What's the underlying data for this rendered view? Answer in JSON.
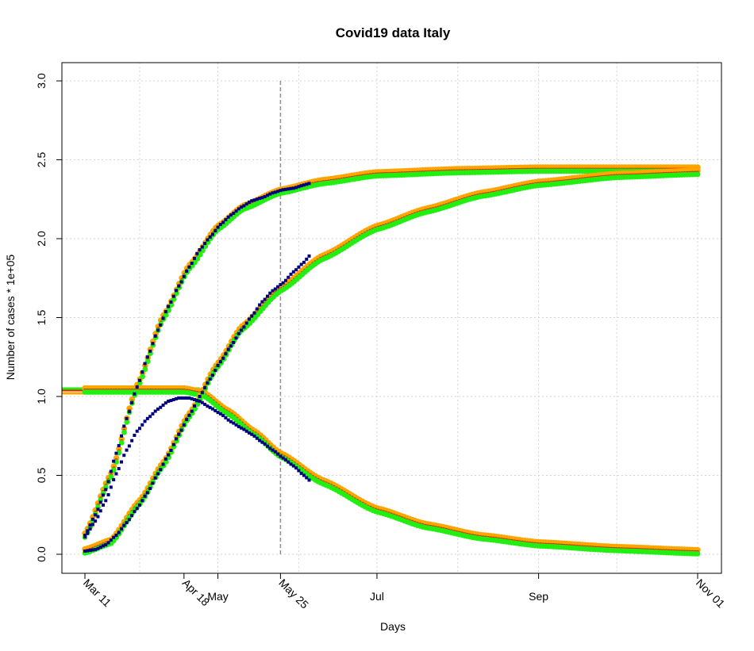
{
  "chart_data": {
    "type": "scatter",
    "title": "Covid19 data Italy",
    "xlabel": "Days",
    "ylabel": "Number of cases * 1e+05",
    "x_range": [
      "2020-03-11",
      "2020-11-01"
    ],
    "ylim": [
      0,
      3
    ],
    "y_ticks": [
      0,
      0.5,
      1,
      1.5,
      2,
      2.5,
      3
    ],
    "y_tick_labels": [
      "0.0",
      "0.5",
      "1.0",
      "1.5",
      "2.0",
      "2.5",
      "3.0"
    ],
    "x_ticks": [
      {
        "date": "2020-03-11",
        "label": "Mar 11",
        "rotated": true
      },
      {
        "date": "2020-04-18",
        "label": "Apr 18",
        "rotated": true
      },
      {
        "date": "2020-05-01",
        "label": "May",
        "rotated": false
      },
      {
        "date": "2020-05-25",
        "label": "May 25",
        "rotated": true
      },
      {
        "date": "2020-07-01",
        "label": "Jul",
        "rotated": false
      },
      {
        "date": "2020-09-01",
        "label": "Sep",
        "rotated": false
      },
      {
        "date": "2020-11-01",
        "label": "Nov 01",
        "rotated": true
      }
    ],
    "grid": true,
    "vertical_line": {
      "date": "2020-05-25",
      "ymax": 3
    },
    "colors": {
      "observed": "#000080",
      "fit_orange": "#ffa500",
      "fit_red": "#dd2200",
      "fit_green": "#22ee11"
    },
    "observed": {
      "cumulative": [
        {
          "x": "2020-03-11",
          "y": 0.12
        },
        {
          "x": "2020-03-15",
          "y": 0.25
        },
        {
          "x": "2020-03-19",
          "y": 0.41
        },
        {
          "x": "2020-03-23",
          "y": 0.64
        },
        {
          "x": "2020-03-27",
          "y": 0.86
        },
        {
          "x": "2020-03-31",
          "y": 1.06
        },
        {
          "x": "2020-04-04",
          "y": 1.25
        },
        {
          "x": "2020-04-08",
          "y": 1.42
        },
        {
          "x": "2020-04-12",
          "y": 1.57
        },
        {
          "x": "2020-04-16",
          "y": 1.7
        },
        {
          "x": "2020-04-20",
          "y": 1.82
        },
        {
          "x": "2020-04-24",
          "y": 1.93
        },
        {
          "x": "2020-04-28",
          "y": 2.01
        },
        {
          "x": "2020-05-02",
          "y": 2.09
        },
        {
          "x": "2020-05-06",
          "y": 2.15
        },
        {
          "x": "2020-05-10",
          "y": 2.2
        },
        {
          "x": "2020-05-14",
          "y": 2.24
        },
        {
          "x": "2020-05-18",
          "y": 2.26
        },
        {
          "x": "2020-05-22",
          "y": 2.29
        },
        {
          "x": "2020-05-26",
          "y": 2.31
        },
        {
          "x": "2020-05-30",
          "y": 2.32
        },
        {
          "x": "2020-06-03",
          "y": 2.34
        },
        {
          "x": "2020-06-05",
          "y": 2.35
        }
      ],
      "active": [
        {
          "x": "2020-03-11",
          "y": 0.11
        },
        {
          "x": "2020-03-15",
          "y": 0.21
        },
        {
          "x": "2020-03-19",
          "y": 0.34
        },
        {
          "x": "2020-03-23",
          "y": 0.51
        },
        {
          "x": "2020-03-27",
          "y": 0.66
        },
        {
          "x": "2020-03-31",
          "y": 0.78
        },
        {
          "x": "2020-04-04",
          "y": 0.86
        },
        {
          "x": "2020-04-08",
          "y": 0.92
        },
        {
          "x": "2020-04-12",
          "y": 0.97
        },
        {
          "x": "2020-04-16",
          "y": 0.99
        },
        {
          "x": "2020-04-20",
          "y": 0.99
        },
        {
          "x": "2020-04-24",
          "y": 0.97
        },
        {
          "x": "2020-04-28",
          "y": 0.93
        },
        {
          "x": "2020-05-02",
          "y": 0.89
        },
        {
          "x": "2020-05-06",
          "y": 0.84
        },
        {
          "x": "2020-05-10",
          "y": 0.8
        },
        {
          "x": "2020-05-14",
          "y": 0.76
        },
        {
          "x": "2020-05-18",
          "y": 0.71
        },
        {
          "x": "2020-05-22",
          "y": 0.66
        },
        {
          "x": "2020-05-26",
          "y": 0.61
        },
        {
          "x": "2020-05-30",
          "y": 0.56
        },
        {
          "x": "2020-06-03",
          "y": 0.5
        },
        {
          "x": "2020-06-05",
          "y": 0.47
        }
      ],
      "closed": [
        {
          "x": "2020-03-11",
          "y": 0.02
        },
        {
          "x": "2020-03-15",
          "y": 0.03
        },
        {
          "x": "2020-03-19",
          "y": 0.06
        },
        {
          "x": "2020-03-23",
          "y": 0.12
        },
        {
          "x": "2020-03-27",
          "y": 0.2
        },
        {
          "x": "2020-03-31",
          "y": 0.29
        },
        {
          "x": "2020-04-04",
          "y": 0.39
        },
        {
          "x": "2020-04-08",
          "y": 0.51
        },
        {
          "x": "2020-04-12",
          "y": 0.63
        },
        {
          "x": "2020-04-16",
          "y": 0.76
        },
        {
          "x": "2020-04-20",
          "y": 0.88
        },
        {
          "x": "2020-04-24",
          "y": 1.0
        },
        {
          "x": "2020-04-28",
          "y": 1.11
        },
        {
          "x": "2020-05-02",
          "y": 1.22
        },
        {
          "x": "2020-05-06",
          "y": 1.32
        },
        {
          "x": "2020-05-10",
          "y": 1.42
        },
        {
          "x": "2020-05-14",
          "y": 1.51
        },
        {
          "x": "2020-05-18",
          "y": 1.6
        },
        {
          "x": "2020-05-22",
          "y": 1.67
        },
        {
          "x": "2020-05-26",
          "y": 1.72
        },
        {
          "x": "2020-05-30",
          "y": 1.79
        },
        {
          "x": "2020-06-03",
          "y": 1.85
        },
        {
          "x": "2020-06-05",
          "y": 1.89
        }
      ]
    },
    "fits": {
      "cumulative": [
        {
          "x": "2020-03-11",
          "y": 0.12
        },
        {
          "x": "2020-03-21",
          "y": 0.5
        },
        {
          "x": "2020-03-31",
          "y": 1.06
        },
        {
          "x": "2020-04-10",
          "y": 1.5
        },
        {
          "x": "2020-04-20",
          "y": 1.82
        },
        {
          "x": "2020-05-01",
          "y": 2.07
        },
        {
          "x": "2020-05-11",
          "y": 2.2
        },
        {
          "x": "2020-05-25",
          "y": 2.3
        },
        {
          "x": "2020-06-10",
          "y": 2.36
        },
        {
          "x": "2020-07-01",
          "y": 2.41
        },
        {
          "x": "2020-08-01",
          "y": 2.43
        },
        {
          "x": "2020-09-01",
          "y": 2.44
        },
        {
          "x": "2020-10-01",
          "y": 2.44
        },
        {
          "x": "2020-11-01",
          "y": 2.44
        }
      ],
      "active": [
        {
          "x": "2020-03-11",
          "y": 1.04
        },
        {
          "x": "2020-04-01",
          "y": 1.04
        },
        {
          "x": "2020-04-18",
          "y": 1.04
        },
        {
          "x": "2020-04-25",
          "y": 1.02
        },
        {
          "x": "2020-05-05",
          "y": 0.9
        },
        {
          "x": "2020-05-15",
          "y": 0.77
        },
        {
          "x": "2020-05-25",
          "y": 0.63
        },
        {
          "x": "2020-06-10",
          "y": 0.46
        },
        {
          "x": "2020-07-01",
          "y": 0.28
        },
        {
          "x": "2020-07-20",
          "y": 0.18
        },
        {
          "x": "2020-08-10",
          "y": 0.11
        },
        {
          "x": "2020-09-01",
          "y": 0.065
        },
        {
          "x": "2020-10-01",
          "y": 0.035
        },
        {
          "x": "2020-11-01",
          "y": 0.015
        }
      ],
      "closed": [
        {
          "x": "2020-03-11",
          "y": 0.02
        },
        {
          "x": "2020-03-21",
          "y": 0.08
        },
        {
          "x": "2020-04-01",
          "y": 0.33
        },
        {
          "x": "2020-04-10",
          "y": 0.57
        },
        {
          "x": "2020-04-20",
          "y": 0.88
        },
        {
          "x": "2020-05-01",
          "y": 1.2
        },
        {
          "x": "2020-05-10",
          "y": 1.43
        },
        {
          "x": "2020-05-25",
          "y": 1.68
        },
        {
          "x": "2020-06-10",
          "y": 1.88
        },
        {
          "x": "2020-07-01",
          "y": 2.07
        },
        {
          "x": "2020-07-20",
          "y": 2.18
        },
        {
          "x": "2020-08-10",
          "y": 2.28
        },
        {
          "x": "2020-09-01",
          "y": 2.35
        },
        {
          "x": "2020-10-01",
          "y": 2.4
        },
        {
          "x": "2020-11-01",
          "y": 2.42
        }
      ],
      "flat_levels": {
        "orange": 1.02,
        "red": 1.04,
        "green": 1.05
      }
    }
  }
}
